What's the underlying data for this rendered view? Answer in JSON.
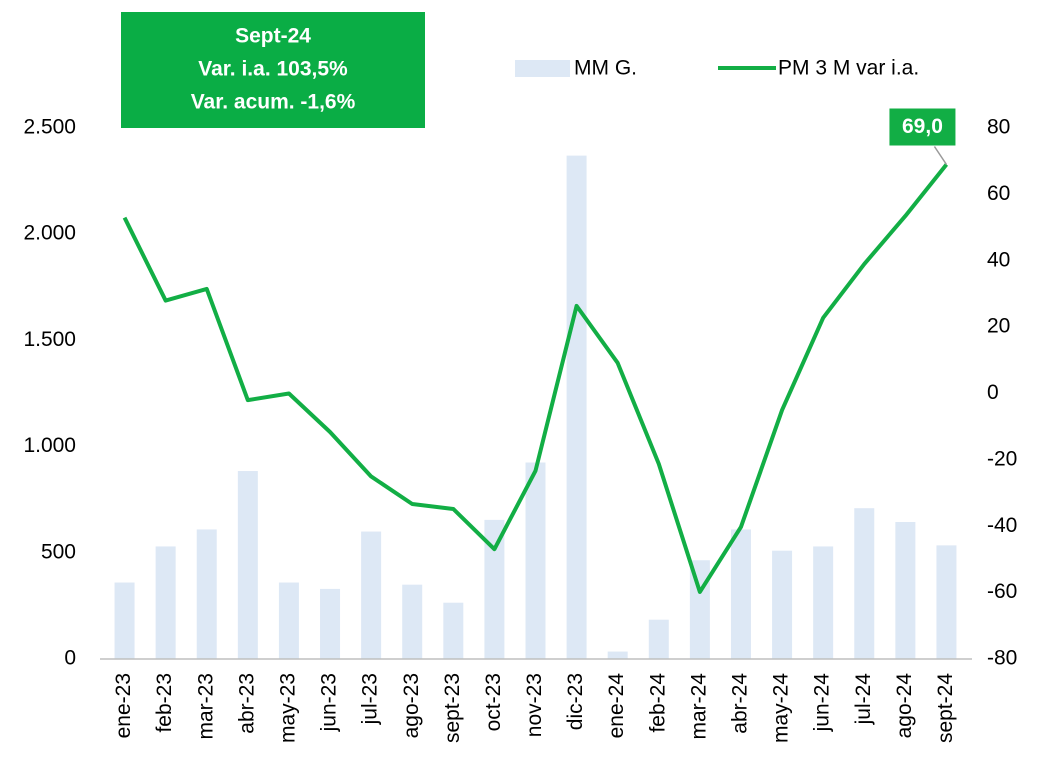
{
  "chart_data": {
    "type": "bar-line",
    "annotation": {
      "lines": [
        "Sept-24",
        "Var. i.a. 103,5%",
        "Var. acum. -1,6%"
      ],
      "color": "#0aad45"
    },
    "categories": [
      "ene-23",
      "feb-23",
      "mar-23",
      "abr-23",
      "may-23",
      "jun-23",
      "jul-23",
      "ago-23",
      "sept-23",
      "oct-23",
      "nov-23",
      "dic-23",
      "ene-24",
      "feb-24",
      "mar-24",
      "abr-24",
      "may-24",
      "jun-24",
      "jul-24",
      "ago-24",
      "sept-24"
    ],
    "series": [
      {
        "name": "MM G.",
        "type": "bar",
        "color": "#dde8f5",
        "values": [
          360,
          530,
          610,
          885,
          360,
          330,
          600,
          350,
          265,
          655,
          925,
          2370,
          35,
          185,
          465,
          610,
          510,
          530,
          710,
          645,
          535
        ]
      },
      {
        "name": "PM 3 M var i.a.",
        "type": "line",
        "axis": "y2",
        "color": "#12ae45",
        "values": [
          53,
          28,
          31.5,
          -2,
          0,
          -11.6,
          -25,
          -33.3,
          -34.8,
          -46.9,
          -23.3,
          26.4,
          9.2,
          -21.2,
          -59.8,
          -40.2,
          -5,
          22.8,
          39,
          53.5,
          69
        ],
        "value_labels": [
          null,
          null,
          null,
          null,
          null,
          null,
          null,
          null,
          null,
          null,
          null,
          null,
          null,
          null,
          null,
          null,
          null,
          null,
          null,
          null,
          "69,0"
        ]
      }
    ],
    "ylim": [
      0,
      2500
    ],
    "yticks": [
      0,
      500,
      {
        "value": 1000,
        "label": "1.000"
      },
      {
        "value": 1500,
        "label": "1.500"
      },
      {
        "value": 2000,
        "label": "2.000"
      },
      {
        "value": 2500,
        "label": "2.500"
      }
    ],
    "y2lim": [
      -80,
      80
    ],
    "y2ticks": [
      -80,
      -60,
      -40,
      -20,
      0,
      20,
      40,
      60,
      80
    ],
    "grid": false
  }
}
